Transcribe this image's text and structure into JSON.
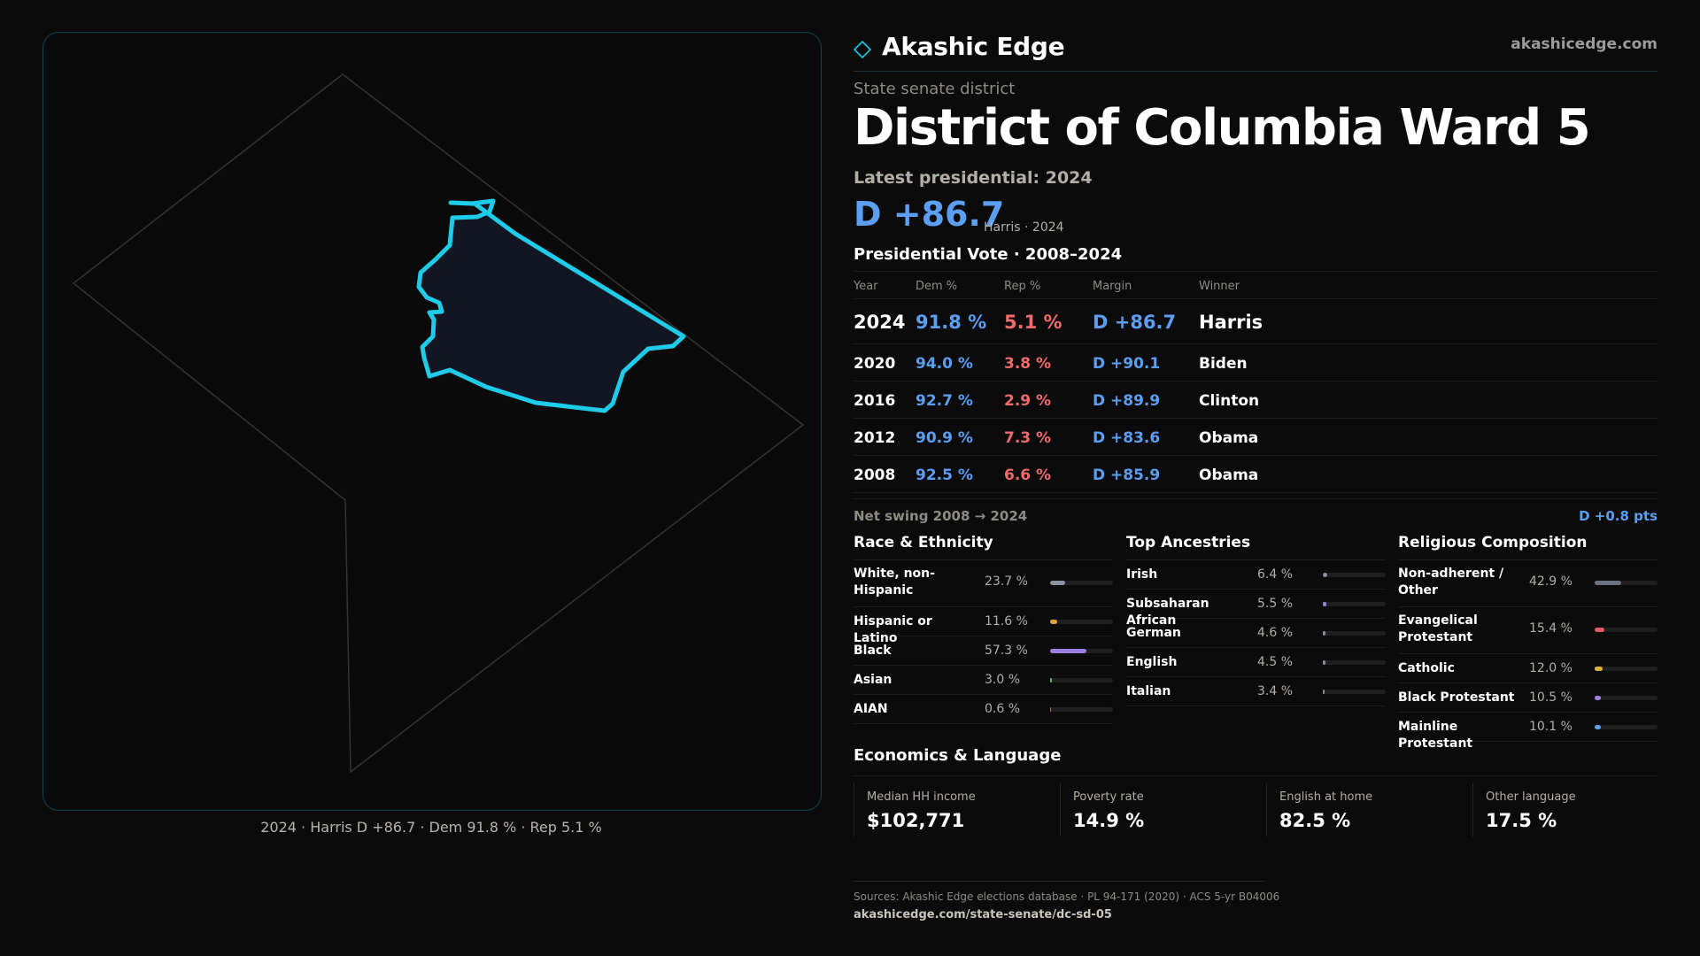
{
  "map": {
    "caption": "2024 · Harris D +86.7 · Dem 91.8 % · Rep 5.1 %",
    "highlight_color": "#19c9e6"
  },
  "header": {
    "brand": "Akashic Edge",
    "site": "akashicedge.com",
    "icon": "diamond-logo-icon"
  },
  "district": {
    "type": "State senate district",
    "name": "District of Columbia Ward 5",
    "latest_label": "Latest presidential: 2024",
    "margin": "D +86.7",
    "margin_sub": "Harris · 2024"
  },
  "presidential": {
    "title": "Presidential Vote · 2008–2024",
    "headers": {
      "year": "Year",
      "dem": "Dem %",
      "rep": "Rep %",
      "margin": "Margin",
      "winner": "Winner"
    },
    "rows": [
      {
        "year": "2024",
        "dem": "91.8 %",
        "rep": "5.1 %",
        "margin": "D +86.7",
        "winner": "Harris"
      },
      {
        "year": "2020",
        "dem": "94.0 %",
        "rep": "3.8 %",
        "margin": "D +90.1",
        "winner": "Biden"
      },
      {
        "year": "2016",
        "dem": "92.7 %",
        "rep": "2.9 %",
        "margin": "D +89.9",
        "winner": "Clinton"
      },
      {
        "year": "2012",
        "dem": "90.9 %",
        "rep": "7.3 %",
        "margin": "D +83.6",
        "winner": "Obama"
      },
      {
        "year": "2008",
        "dem": "92.5 %",
        "rep": "6.6 %",
        "margin": "D +85.9",
        "winner": "Obama"
      }
    ],
    "swing_label": "Net swing 2008 → 2024",
    "swing_value": "D +0.8 pts",
    "dem_color": "#5b9ef2",
    "rep_color": "#ef6b6b"
  },
  "race": {
    "title": "Race & Ethnicity",
    "items": [
      {
        "label": "White, non-Hispanic",
        "pct": "23.7 %",
        "value": 23.7,
        "color": "#8a93a0"
      },
      {
        "label": "Hispanic or Latino",
        "pct": "11.6 %",
        "value": 11.6,
        "color": "#e0a23a"
      },
      {
        "label": "Black",
        "pct": "57.3 %",
        "value": 57.3,
        "color": "#9b7fe0"
      },
      {
        "label": "Asian",
        "pct": "3.0 %",
        "value": 3.0,
        "color": "#3fbf7a"
      },
      {
        "label": "AIAN",
        "pct": "0.6 %",
        "value": 0.6,
        "color": "#c96a5a"
      }
    ]
  },
  "ancestry": {
    "title": "Top Ancestries",
    "items": [
      {
        "label": "Irish",
        "pct": "6.4 %",
        "value": 6.4,
        "color": "#8a8f98"
      },
      {
        "label": "Subsaharan African",
        "pct": "5.5 %",
        "value": 5.5,
        "color": "#9b7fe0"
      },
      {
        "label": "German",
        "pct": "4.6 %",
        "value": 4.6,
        "color": "#8a8f98"
      },
      {
        "label": "English",
        "pct": "4.5 %",
        "value": 4.5,
        "color": "#8a8f98"
      },
      {
        "label": "Italian",
        "pct": "3.4 %",
        "value": 3.4,
        "color": "#8a8f98"
      }
    ]
  },
  "religion": {
    "title": "Religious Composition",
    "items": [
      {
        "label": "Non-adherent / Other",
        "pct": "42.9 %",
        "value": 42.9,
        "color": "#6b7280"
      },
      {
        "label": "Evangelical Protestant",
        "pct": "15.4 %",
        "value": 15.4,
        "color": "#e05a66"
      },
      {
        "label": "Catholic",
        "pct": "12.0 %",
        "value": 12.0,
        "color": "#e0b040"
      },
      {
        "label": "Black Protestant",
        "pct": "10.5 %",
        "value": 10.5,
        "color": "#9b7fe0"
      },
      {
        "label": "Mainline Protestant",
        "pct": "10.1 %",
        "value": 10.1,
        "color": "#5b9ef2"
      }
    ]
  },
  "economics": {
    "title": "Economics & Language",
    "items": [
      {
        "label": "Median HH income",
        "value": "$102,771"
      },
      {
        "label": "Poverty rate",
        "value": "14.9 %"
      },
      {
        "label": "English at home",
        "value": "82.5 %"
      },
      {
        "label": "Other language",
        "value": "17.5 %"
      }
    ]
  },
  "footer": {
    "sources": "Sources: Akashic Edge elections database · PL 94-171 (2020) · ACS 5-yr B04006",
    "url": "akashicedge.com/state-senate/dc-sd-05"
  }
}
